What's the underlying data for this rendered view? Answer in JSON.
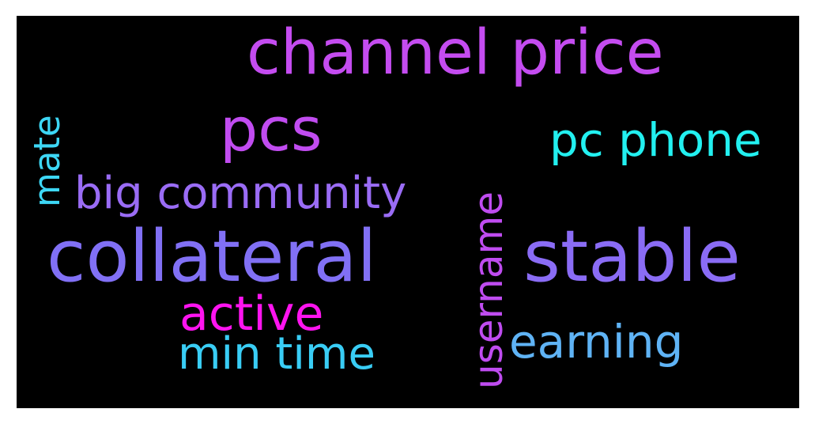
{
  "words": [
    {
      "id": "channel-price",
      "text": "channel price",
      "color": "#c44cf0"
    },
    {
      "id": "pcs",
      "text": "pcs",
      "color": "#c14cf0"
    },
    {
      "id": "pc-phone",
      "text": "pc phone",
      "color": "#22f0f0"
    },
    {
      "id": "mate",
      "text": "mate",
      "color": "#3dd7f5"
    },
    {
      "id": "big-community",
      "text": "big community",
      "color": "#9a6cf5"
    },
    {
      "id": "username",
      "text": "username",
      "color": "#bf4cf0"
    },
    {
      "id": "collateral",
      "text": "collateral",
      "color": "#8170f5"
    },
    {
      "id": "stable",
      "text": "stable",
      "color": "#8a6cf5"
    },
    {
      "id": "active",
      "text": "active",
      "color": "#ff14f0"
    },
    {
      "id": "earning",
      "text": "earning",
      "color": "#5fb3f5"
    },
    {
      "id": "min-time",
      "text": "min time",
      "color": "#39cdf5"
    }
  ]
}
